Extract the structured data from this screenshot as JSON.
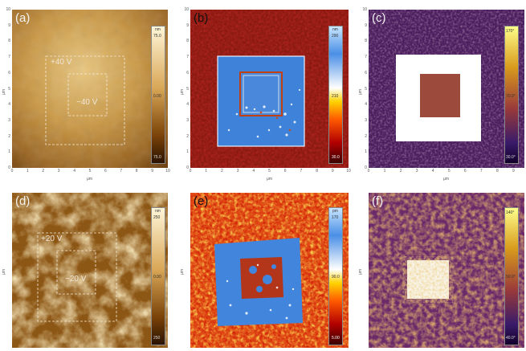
{
  "panels": [
    {
      "id": "a",
      "tag": "(a)",
      "labels": [
        "+40 V",
        "−40 V"
      ],
      "colorbar": {
        "unit": "nm",
        "max": "75.0",
        "mid": "0.00",
        "min": "75.0"
      },
      "x_ticks": [
        "0",
        "1",
        "2",
        "3",
        "4",
        "5",
        "6",
        "7",
        "8",
        "9",
        "10"
      ],
      "x_unit": "μm",
      "y_ticks": [
        "10",
        "9",
        "8",
        "7",
        "6",
        "5",
        "4",
        "3",
        "2",
        "1",
        "0"
      ],
      "y_unit": "μm"
    },
    {
      "id": "b",
      "tag": "(b)",
      "labels": [],
      "colorbar": {
        "unit": "nm",
        "max": "290",
        "mid": "210",
        "min": "30.0"
      },
      "x_ticks": [
        "0",
        "1",
        "2",
        "3",
        "4",
        "5",
        "6",
        "7",
        "8",
        "9",
        "10"
      ],
      "x_unit": "μm",
      "y_ticks": [
        "10",
        "9",
        "8",
        "7",
        "6",
        "5",
        "4",
        "3",
        "2",
        "1",
        "0"
      ],
      "y_unit": "μm"
    },
    {
      "id": "c",
      "tag": "(c)",
      "labels": [],
      "colorbar": {
        "unit": "",
        "max": "170°",
        "mid": "70.0°",
        "min": "30.0°"
      },
      "x_ticks": [
        "0",
        "1",
        "2",
        "3",
        "4",
        "5",
        "6",
        "7",
        "8",
        "9"
      ],
      "x_unit": "μm",
      "y_ticks": [
        "10",
        "9",
        "8",
        "7",
        "6",
        "5",
        "4",
        "3",
        "2",
        "1",
        "0"
      ],
      "y_unit": "μm"
    },
    {
      "id": "d",
      "tag": "(d)",
      "labels": [
        "+20 V",
        "−20 V"
      ],
      "colorbar": {
        "unit": "nm",
        "max": "250",
        "mid": "0.00",
        "min": "250"
      },
      "x_ticks": [],
      "x_unit": "",
      "y_ticks": [],
      "y_unit": "μm"
    },
    {
      "id": "e",
      "tag": "(e)",
      "labels": [],
      "colorbar": {
        "unit": "pm",
        "max": "170",
        "mid": "90.0",
        "min": "5.00"
      },
      "x_ticks": [],
      "x_unit": "",
      "y_ticks": [],
      "y_unit": "μm"
    },
    {
      "id": "f",
      "tag": "(f)",
      "labels": [],
      "colorbar": {
        "unit": "",
        "max": "140°",
        "mid": "50.0°",
        "min": "40.0°"
      },
      "x_ticks": [],
      "x_unit": "",
      "y_ticks": [],
      "y_unit": "μm"
    }
  ],
  "colors": {
    "topography_gradient": [
      "#fff6d8",
      "#d9a757",
      "#7a4208",
      "#2a1300"
    ],
    "amplitude_gradient": [
      "#c9e6ff",
      "#4a8fe6",
      "#ffffff",
      "#ffd200",
      "#ff5a00",
      "#b20000",
      "#3a0000"
    ],
    "phase_gradient": [
      "#ffff8a",
      "#d89a1c",
      "#9a3a3a",
      "#3a1b6a",
      "#12002a"
    ],
    "switched_blue": "#3f82d9",
    "amplitude_background": "#e04a16",
    "phase_background": "#6a2a6a",
    "phase_switched": "#ffffff"
  }
}
